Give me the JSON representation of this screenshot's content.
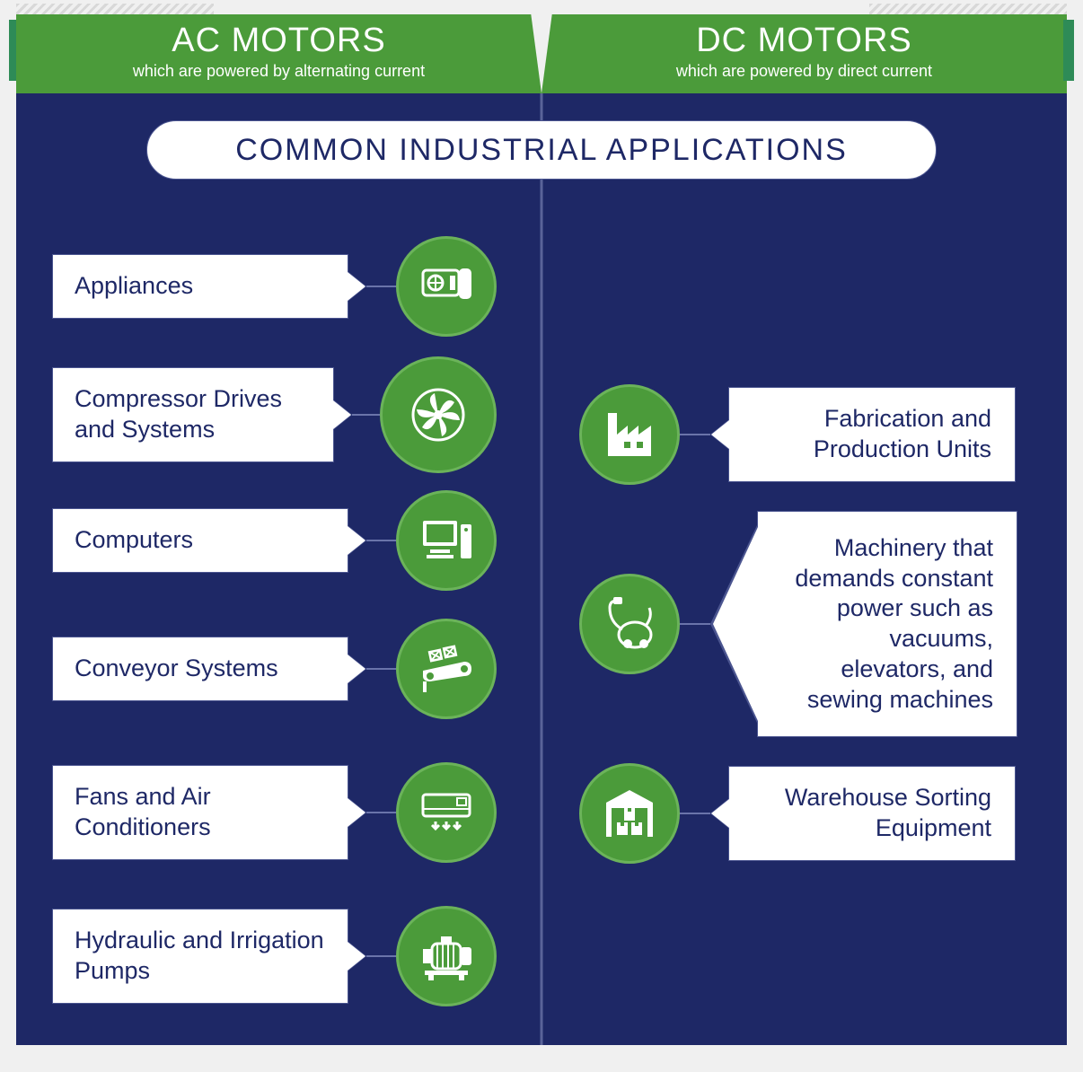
{
  "colors": {
    "green": "#4b9b3a",
    "green_border": "#6bb35a",
    "navy": "#1e2866",
    "divider": "#3b4680",
    "white": "#ffffff",
    "connector": "#6a74aa",
    "box_border": "#4b5590"
  },
  "typography": {
    "header_title_fontsize": 38,
    "header_sub_fontsize": 18,
    "pill_fontsize": 34,
    "label_fontsize": 27
  },
  "header": {
    "left": {
      "title": "AC MOTORS",
      "subtitle": "which are powered by alternating current"
    },
    "right": {
      "title": "DC MOTORS",
      "subtitle": "which are powered by direct current"
    }
  },
  "section_title": "COMMON INDUSTRIAL APPLICATIONS",
  "ac_items": [
    {
      "label": "Appliances",
      "icon": "appliance-icon"
    },
    {
      "label": "Compressor Drives and Systems",
      "icon": "fan-icon"
    },
    {
      "label": "Computers",
      "icon": "computer-icon"
    },
    {
      "label": "Conveyor Systems",
      "icon": "conveyor-icon"
    },
    {
      "label": "Fans and Air Conditioners",
      "icon": "ac-unit-icon"
    },
    {
      "label": "Hydraulic and Irrigation Pumps",
      "icon": "pump-icon"
    }
  ],
  "dc_items": [
    {
      "label": "Fabrication and Production Units",
      "icon": "factory-icon",
      "tall": false
    },
    {
      "label": "Machinery that demands constant power such as vacuums, elevators, and sewing machines",
      "icon": "vacuum-icon",
      "tall": true
    },
    {
      "label": "Warehouse Sorting Equipment",
      "icon": "warehouse-icon",
      "tall": false
    }
  ]
}
